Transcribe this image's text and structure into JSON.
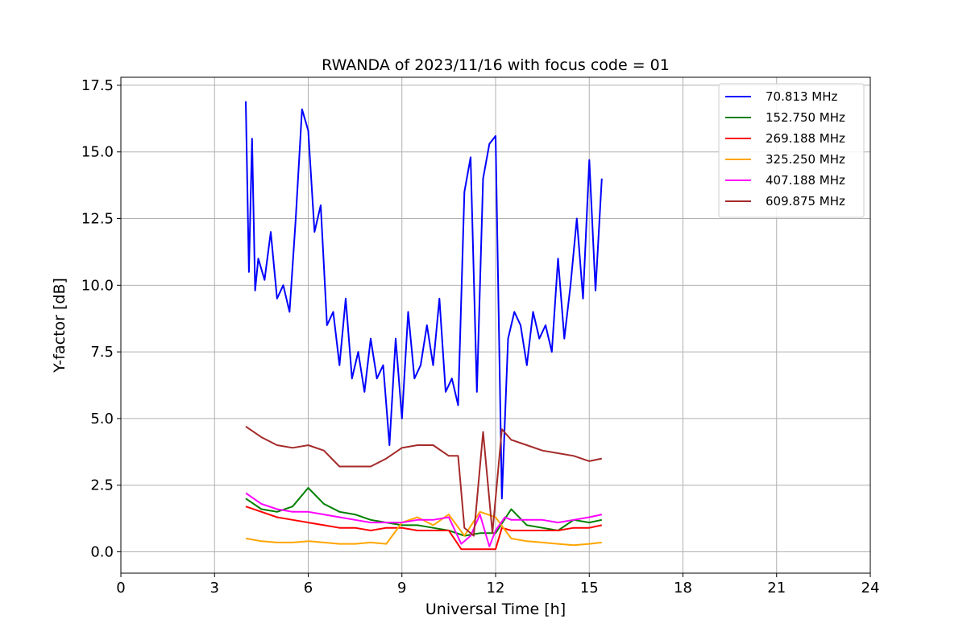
{
  "chart_data": {
    "type": "line",
    "title": "RWANDA of 2023/11/16 with focus code = 01",
    "xlabel": "Universal Time [h]",
    "ylabel": "Y-factor [dB]",
    "xlim": [
      0,
      24
    ],
    "ylim": [
      -0.8,
      17.8
    ],
    "xticks": [
      0,
      3,
      6,
      9,
      12,
      15,
      18,
      21,
      24
    ],
    "xtick_labels": [
      "0",
      "3",
      "6",
      "9",
      "12",
      "15",
      "18",
      "21",
      "24"
    ],
    "yticks": [
      0.0,
      2.5,
      5.0,
      7.5,
      10.0,
      12.5,
      15.0,
      17.5
    ],
    "ytick_labels": [
      "0.0",
      "2.5",
      "5.0",
      "7.5",
      "10.0",
      "12.5",
      "15.0",
      "17.5"
    ],
    "grid": true,
    "legend_position": "top-right",
    "series": [
      {
        "name": " 70.813 MHz",
        "color": "#0000ff",
        "x": [
          4.0,
          4.1,
          4.2,
          4.3,
          4.4,
          4.6,
          4.8,
          5.0,
          5.2,
          5.4,
          5.6,
          5.8,
          6.0,
          6.2,
          6.4,
          6.6,
          6.8,
          7.0,
          7.2,
          7.4,
          7.6,
          7.8,
          8.0,
          8.2,
          8.4,
          8.6,
          8.8,
          9.0,
          9.2,
          9.4,
          9.6,
          9.8,
          10.0,
          10.2,
          10.4,
          10.6,
          10.8,
          11.0,
          11.2,
          11.4,
          11.6,
          11.8,
          12.0,
          12.2,
          12.4,
          12.6,
          12.8,
          13.0,
          13.2,
          13.4,
          13.6,
          13.8,
          14.0,
          14.2,
          14.4,
          14.6,
          14.8,
          15.0,
          15.2,
          15.4
        ],
        "y": [
          16.9,
          10.5,
          15.5,
          9.8,
          11.0,
          10.2,
          12.0,
          9.5,
          10.0,
          9.0,
          12.5,
          16.6,
          15.8,
          12.0,
          13.0,
          8.5,
          9.0,
          7.0,
          9.5,
          6.5,
          7.5,
          6.0,
          8.0,
          6.5,
          7.0,
          4.0,
          8.0,
          5.0,
          9.0,
          6.5,
          7.0,
          8.5,
          7.0,
          9.5,
          6.0,
          6.5,
          5.5,
          13.5,
          14.8,
          6.0,
          14.0,
          15.3,
          15.6,
          2.0,
          8.0,
          9.0,
          8.5,
          7.0,
          9.0,
          8.0,
          8.5,
          7.5,
          11.0,
          8.0,
          10.0,
          12.5,
          9.5,
          14.7,
          9.8,
          14.0
        ]
      },
      {
        "name": "152.750 MHz",
        "color": "#008000",
        "x": [
          4.0,
          4.5,
          5.0,
          5.5,
          6.0,
          6.5,
          7.0,
          7.5,
          8.0,
          8.5,
          9.0,
          9.5,
          10.0,
          10.5,
          11.0,
          11.5,
          12.0,
          12.5,
          13.0,
          13.5,
          14.0,
          14.5,
          15.0,
          15.4
        ],
        "y": [
          2.0,
          1.6,
          1.5,
          1.7,
          2.4,
          1.8,
          1.5,
          1.4,
          1.2,
          1.1,
          1.0,
          1.0,
          0.9,
          0.8,
          0.6,
          0.7,
          0.7,
          1.6,
          1.0,
          0.9,
          0.8,
          1.2,
          1.1,
          1.2
        ]
      },
      {
        "name": "269.188 MHz",
        "color": "#ff0000",
        "x": [
          4.0,
          4.5,
          5.0,
          5.5,
          6.0,
          6.5,
          7.0,
          7.5,
          8.0,
          8.5,
          9.0,
          9.5,
          10.0,
          10.5,
          10.9,
          11.2,
          11.5,
          12.0,
          12.2,
          12.5,
          13.0,
          13.5,
          14.0,
          14.5,
          15.0,
          15.4
        ],
        "y": [
          1.7,
          1.5,
          1.3,
          1.2,
          1.1,
          1.0,
          0.9,
          0.9,
          0.8,
          0.9,
          0.9,
          0.8,
          0.8,
          0.8,
          0.1,
          0.1,
          0.1,
          0.1,
          0.9,
          0.8,
          0.8,
          0.8,
          0.8,
          0.9,
          0.9,
          1.0
        ]
      },
      {
        "name": "325.250 MHz",
        "color": "#ffa500",
        "x": [
          4.0,
          4.5,
          5.0,
          5.5,
          6.0,
          6.5,
          7.0,
          7.5,
          8.0,
          8.5,
          9.0,
          9.5,
          10.0,
          10.5,
          11.0,
          11.5,
          12.0,
          12.5,
          13.0,
          13.5,
          14.0,
          14.5,
          15.0,
          15.4
        ],
        "y": [
          0.5,
          0.4,
          0.35,
          0.35,
          0.4,
          0.35,
          0.3,
          0.3,
          0.35,
          0.3,
          1.1,
          1.3,
          1.0,
          1.4,
          0.6,
          1.5,
          1.3,
          0.5,
          0.4,
          0.35,
          0.3,
          0.25,
          0.3,
          0.35
        ]
      },
      {
        "name": "407.188 MHz",
        "color": "#ff00ff",
        "x": [
          4.0,
          4.5,
          5.0,
          5.5,
          6.0,
          6.5,
          7.0,
          7.5,
          8.0,
          8.5,
          9.0,
          9.5,
          10.0,
          10.5,
          10.9,
          11.2,
          11.5,
          11.8,
          12.0,
          12.3,
          12.5,
          13.0,
          13.5,
          14.0,
          14.5,
          15.0,
          15.4
        ],
        "y": [
          2.2,
          1.8,
          1.6,
          1.5,
          1.5,
          1.4,
          1.3,
          1.2,
          1.1,
          1.1,
          1.1,
          1.2,
          1.2,
          1.3,
          0.3,
          0.6,
          1.4,
          0.2,
          0.8,
          1.3,
          1.2,
          1.2,
          1.2,
          1.1,
          1.2,
          1.3,
          1.4
        ]
      },
      {
        "name": "609.875 MHz",
        "color": "#a52a2a",
        "x": [
          4.0,
          4.5,
          5.0,
          5.5,
          6.0,
          6.5,
          7.0,
          7.5,
          8.0,
          8.5,
          9.0,
          9.5,
          10.0,
          10.5,
          10.8,
          11.0,
          11.3,
          11.6,
          11.9,
          12.2,
          12.5,
          13.0,
          13.5,
          14.0,
          14.5,
          15.0,
          15.4
        ],
        "y": [
          4.7,
          4.3,
          4.0,
          3.9,
          4.0,
          3.8,
          3.2,
          3.2,
          3.2,
          3.5,
          3.9,
          4.0,
          4.0,
          3.6,
          3.6,
          0.9,
          0.6,
          4.5,
          0.7,
          4.6,
          4.2,
          4.0,
          3.8,
          3.7,
          3.6,
          3.4,
          3.5
        ]
      }
    ]
  }
}
